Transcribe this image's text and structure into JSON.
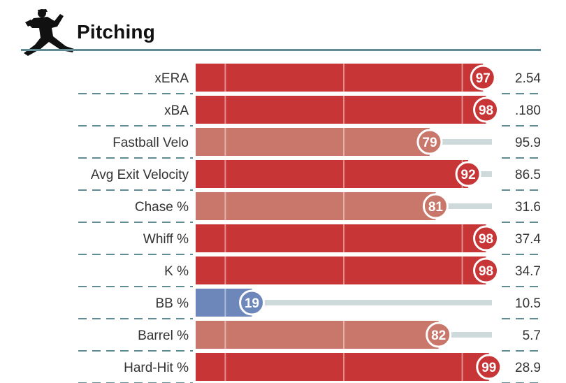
{
  "header": {
    "title": "Pitching",
    "icon": "pitcher-silhouette-icon"
  },
  "colors": {
    "elite": "#c73536",
    "above": "#c9776b",
    "below": "#6e87bb",
    "track": "#cdd9da",
    "divider": "#5f8c95"
  },
  "chart_data": {
    "type": "bar",
    "orientation": "horizontal",
    "title": "Pitching",
    "xlim": [
      0,
      100
    ],
    "gridlines": [
      10,
      50,
      90
    ],
    "categories": [
      "xERA",
      "xBA",
      "Fastball Velo",
      "Avg Exit Velocity",
      "Chase %",
      "Whiff %",
      "K %",
      "BB %",
      "Barrel %",
      "Hard-Hit %"
    ],
    "percentiles": [
      97,
      98,
      79,
      92,
      81,
      98,
      98,
      19,
      82,
      99
    ],
    "stat_values": [
      "2.54",
      ".180",
      "95.9",
      "86.5",
      "31.6",
      "37.4",
      "34.7",
      "10.5",
      "5.7",
      "28.9"
    ],
    "tiers": [
      "elite",
      "elite",
      "above",
      "elite",
      "above",
      "elite",
      "elite",
      "below",
      "above",
      "elite"
    ]
  }
}
